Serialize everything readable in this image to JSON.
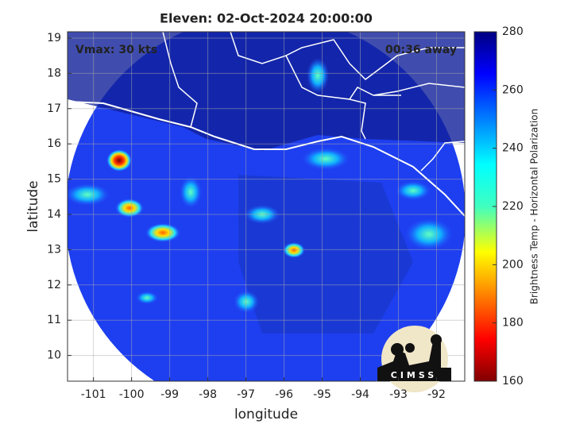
{
  "title": "Eleven: 02-Oct-2024 20:00:00",
  "annotations": {
    "left": "Vmax: 30 kts",
    "right": "00:36 away"
  },
  "map": {
    "xlabel": "longitude",
    "ylabel": "latitude",
    "xlim": [
      -101.68,
      -91.26
    ],
    "ylim": [
      9.27,
      19.18
    ],
    "xticks": [
      -101,
      -100,
      -99,
      -98,
      -97,
      -96,
      -95,
      -94,
      -93,
      -92
    ],
    "yticks": [
      10,
      11,
      12,
      13,
      14,
      15,
      16,
      17,
      18,
      19
    ],
    "grid": true
  },
  "colorbar": {
    "label": "Brightness Temp - Horizontal Polarization",
    "lim": [
      160,
      280
    ],
    "ticks": [
      160,
      180,
      200,
      220,
      240,
      260,
      280
    ]
  },
  "logo": "CIMSS"
}
